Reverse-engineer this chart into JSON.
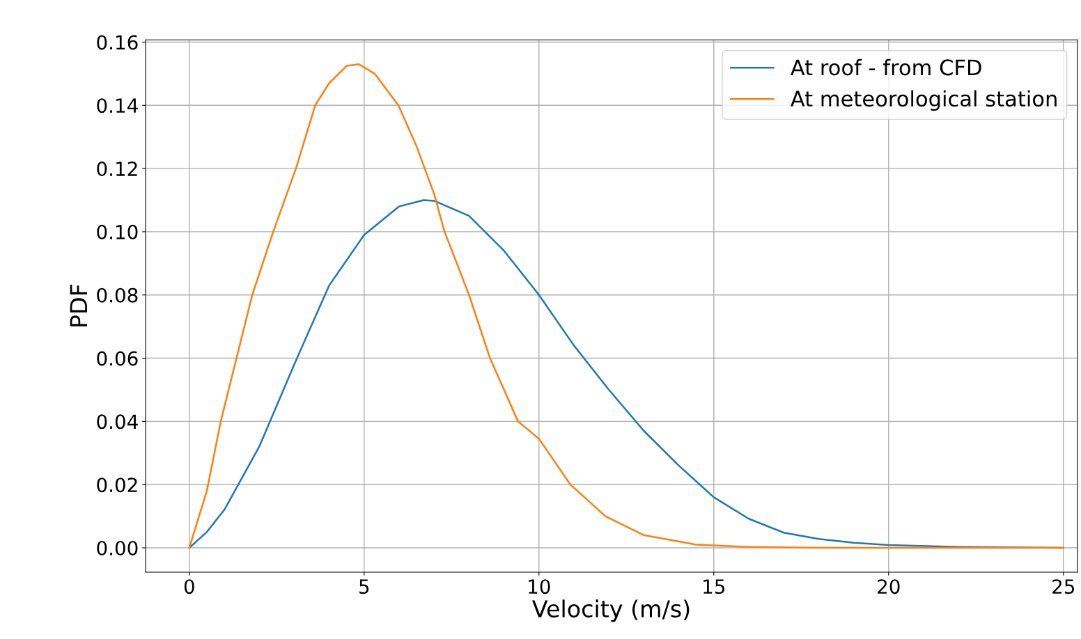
{
  "chart_data": {
    "type": "line",
    "xlabel": "Velocity (m/s)",
    "ylabel": "PDF",
    "xlim": [
      -1.25,
      25.4
    ],
    "ylim": [
      -0.0077,
      0.1607
    ],
    "xticks": [
      0,
      5,
      10,
      15,
      20,
      25
    ],
    "yticks": [
      {
        "value": 0,
        "label": "0.00"
      },
      {
        "value": 0.02,
        "label": "0.02"
      },
      {
        "value": 0.04,
        "label": "0.04"
      },
      {
        "value": 0.06,
        "label": "0.06"
      },
      {
        "value": 0.08,
        "label": "0.08"
      },
      {
        "value": 0.1,
        "label": "0.10"
      },
      {
        "value": 0.12,
        "label": "0.12"
      },
      {
        "value": 0.14,
        "label": "0.14"
      },
      {
        "value": 0.16,
        "label": "0.16"
      }
    ],
    "grid": true,
    "legend": "top right",
    "marker": "none",
    "line_style": "solid",
    "series": [
      {
        "name": "At roof - from CFD",
        "color": "#1f77b4",
        "x": [
          0,
          0.5,
          1,
          2,
          3,
          4,
          5,
          6,
          6.7,
          7,
          8,
          9,
          10,
          11,
          12,
          13,
          14,
          15,
          16,
          17,
          18,
          19,
          20,
          22,
          25
        ],
        "values": [
          0,
          0.005,
          0.012,
          0.032,
          0.058,
          0.083,
          0.099,
          0.108,
          0.11,
          0.1098,
          0.105,
          0.094,
          0.08,
          0.064,
          0.05,
          0.037,
          0.026,
          0.016,
          0.0092,
          0.0048,
          0.0028,
          0.0016,
          0.0009,
          0.0003,
          0
        ]
      },
      {
        "name": "At meteorological station",
        "color": "#ff7f0e",
        "x": [
          0,
          0.5,
          0.9,
          1.35,
          1.8,
          2.4,
          3.05,
          3.6,
          4.0,
          4.5,
          4.85,
          5.3,
          5.98,
          6.5,
          7.0,
          7.3,
          8.0,
          8.6,
          9.4,
          10,
          10.9,
          11.9,
          13,
          14.5,
          16,
          18,
          25
        ],
        "values": [
          0,
          0.018,
          0.04,
          0.06,
          0.08,
          0.1,
          0.12,
          0.14,
          0.147,
          0.1525,
          0.153,
          0.15,
          0.14,
          0.127,
          0.112,
          0.1,
          0.08,
          0.06,
          0.04,
          0.0345,
          0.02,
          0.01,
          0.004,
          0.001,
          0.0003,
          0,
          0
        ]
      }
    ]
  }
}
